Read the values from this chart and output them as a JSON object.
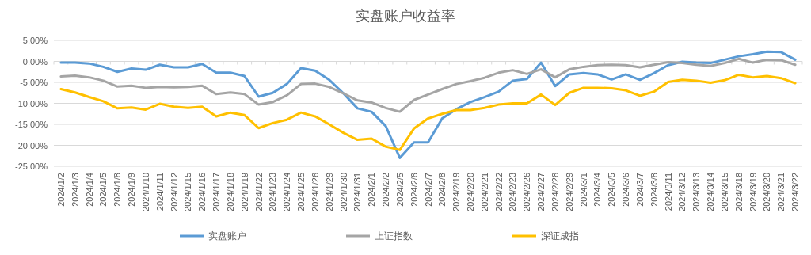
{
  "chart_data": {
    "type": "line",
    "title": "实盘账户收益率",
    "categories": [
      "2024/1/2",
      "2024/1/3",
      "2024/1/4",
      "2024/1/5",
      "2024/1/8",
      "2024/1/9",
      "2024/1/10",
      "2024/1/11",
      "2024/1/12",
      "2024/1/15",
      "2024/1/16",
      "2024/1/17",
      "2024/1/18",
      "2024/1/19",
      "2024/1/22",
      "2024/1/23",
      "2024/1/24",
      "2024/1/25",
      "2024/1/26",
      "2024/1/29",
      "2024/1/30",
      "2024/1/31",
      "2024/2/1",
      "2024/2/2",
      "2024/2/5",
      "2024/2/6",
      "2024/2/7",
      "2024/2/8",
      "2024/2/19",
      "2024/2/20",
      "2024/2/21",
      "2024/2/22",
      "2024/2/23",
      "2024/2/26",
      "2024/2/27",
      "2024/2/28",
      "2024/2/29",
      "2024/3/1",
      "2024/3/4",
      "2024/3/5",
      "2024/3/6",
      "2024/3/7",
      "2024/3/8",
      "2024/3/11",
      "2024/3/12",
      "2024/3/13",
      "2024/3/14",
      "2024/3/15",
      "2024/3/18",
      "2024/3/19",
      "2024/3/20",
      "2024/3/21",
      "2024/3/22"
    ],
    "series": [
      {
        "name": "实盘账户",
        "color": "#5b9bd5",
        "values": [
          -0.3,
          -0.3,
          -0.5,
          -1.3,
          -2.5,
          -1.7,
          -2.0,
          -0.8,
          -1.4,
          -1.4,
          -0.6,
          -2.7,
          -2.7,
          -3.5,
          -8.4,
          -7.5,
          -5.4,
          -1.6,
          -2.2,
          -4.4,
          -7.6,
          -11.2,
          -12.0,
          -15.4,
          -23.0,
          -19.3,
          -19.3,
          -13.6,
          -11.4,
          -9.7,
          -8.5,
          -7.2,
          -4.6,
          -4.2,
          -0.3,
          -5.9,
          -3.1,
          -2.8,
          -3.1,
          -4.3,
          -3.1,
          -4.4,
          -2.8,
          -0.9,
          -0.1,
          -0.3,
          -0.4,
          0.4,
          1.2,
          1.7,
          2.3,
          2.2,
          0.4
        ]
      },
      {
        "name": "上证指数",
        "color": "#a5a5a5",
        "values": [
          -3.6,
          -3.4,
          -3.8,
          -4.6,
          -6.0,
          -5.8,
          -6.3,
          -6.1,
          -6.2,
          -6.1,
          -5.8,
          -7.8,
          -7.4,
          -7.8,
          -10.3,
          -9.7,
          -8.1,
          -5.4,
          -5.3,
          -6.1,
          -7.6,
          -9.3,
          -9.8,
          -11.1,
          -12.0,
          -9.2,
          -7.9,
          -6.6,
          -5.4,
          -4.7,
          -3.9,
          -2.7,
          -2.1,
          -3.0,
          -1.9,
          -3.8,
          -1.9,
          -1.3,
          -0.9,
          -0.8,
          -0.9,
          -1.4,
          -0.8,
          -0.2,
          -0.4,
          -0.8,
          -1.1,
          -0.4,
          0.6,
          -0.3,
          0.4,
          0.3,
          -0.8
        ]
      },
      {
        "name": "深证成指",
        "color": "#ffc000",
        "values": [
          -6.6,
          -7.4,
          -8.5,
          -9.5,
          -11.2,
          -11.0,
          -11.5,
          -10.1,
          -10.8,
          -11.1,
          -10.8,
          -13.1,
          -12.2,
          -12.8,
          -15.9,
          -14.7,
          -13.9,
          -12.2,
          -13.1,
          -15.0,
          -17.0,
          -18.7,
          -18.4,
          -20.3,
          -21.1,
          -16.0,
          -13.6,
          -12.5,
          -11.6,
          -11.6,
          -11.1,
          -10.3,
          -10.0,
          -10.0,
          -7.9,
          -10.4,
          -7.5,
          -6.3,
          -6.3,
          -6.4,
          -6.9,
          -8.2,
          -7.2,
          -4.9,
          -4.4,
          -4.6,
          -5.1,
          -4.5,
          -3.2,
          -3.8,
          -3.5,
          -4.0,
          -5.2
        ]
      }
    ],
    "ylim": [
      -25,
      5
    ],
    "yticks": [
      {
        "value": 5,
        "label": "5.00%"
      },
      {
        "value": 0,
        "label": "0.00%"
      },
      {
        "value": -5,
        "label": "-5.00%"
      },
      {
        "value": -10,
        "label": "-10.00%"
      },
      {
        "value": -15,
        "label": "-15.00%"
      },
      {
        "value": -20,
        "label": "-20.00%"
      },
      {
        "value": -25,
        "label": "-25.00%"
      }
    ],
    "grid": "y",
    "legend": "bottom",
    "marker": "none",
    "line_style": "solid"
  }
}
